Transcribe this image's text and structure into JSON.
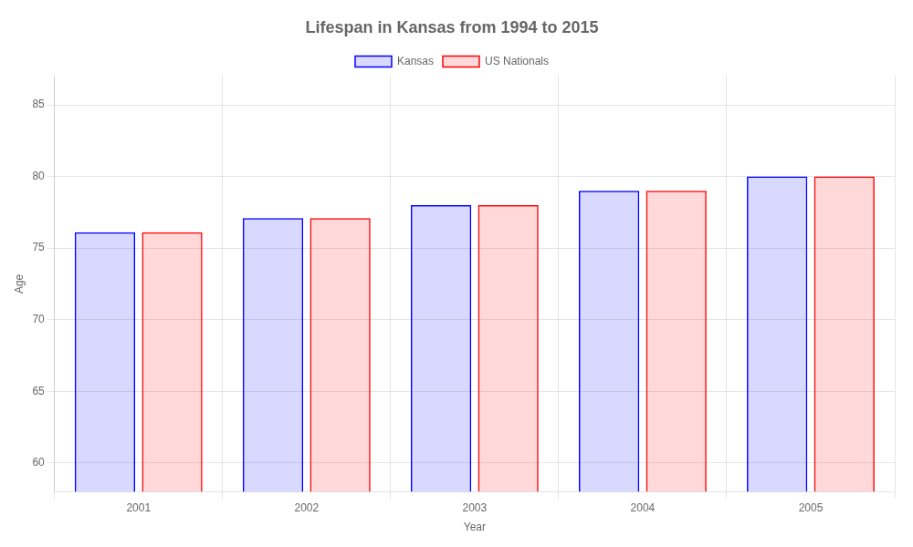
{
  "chart_data": {
    "type": "bar",
    "title": "Lifespan in Kansas from 1994 to 2015",
    "xlabel": "Year",
    "ylabel": "Age",
    "categories": [
      "2001",
      "2002",
      "2003",
      "2004",
      "2005"
    ],
    "series": [
      {
        "name": "Kansas",
        "color": "#0000ff",
        "values": [
          76.1,
          77.1,
          78.0,
          79.0,
          80.0
        ]
      },
      {
        "name": "US Nationals",
        "color": "#ff0000",
        "values": [
          76.1,
          77.1,
          78.0,
          79.0,
          80.0
        ]
      }
    ],
    "ylim": [
      58,
      87
    ],
    "yticks": [
      60,
      65,
      70,
      75,
      80,
      85
    ],
    "grid": true,
    "legend": "top"
  }
}
